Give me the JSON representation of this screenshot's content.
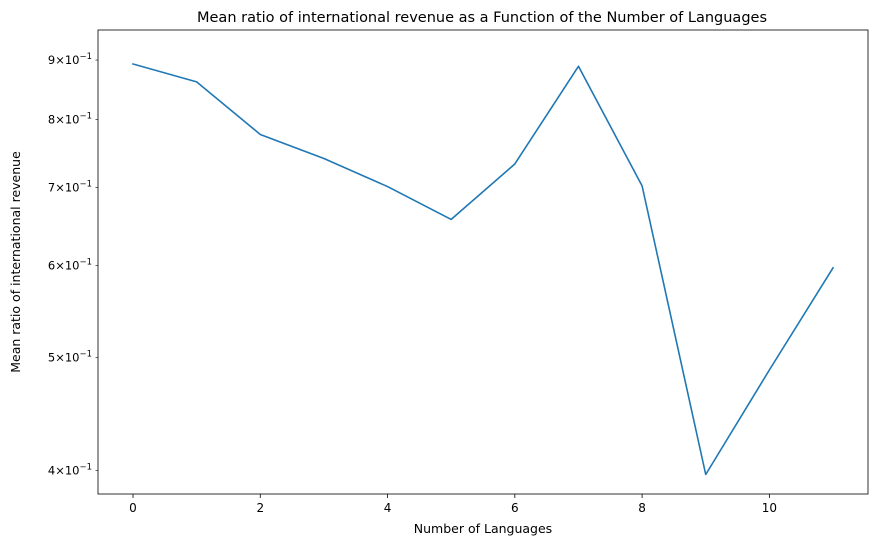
{
  "chart_data": {
    "type": "line",
    "title": "Mean ratio of international revenue as a Function of the Number of Languages",
    "xlabel": "Number of Languages",
    "ylabel": "Mean ratio of international revenue",
    "yscale": "log",
    "xlim": [
      -0.55,
      11.55
    ],
    "ylim": [
      0.382,
      0.955
    ],
    "x_ticks": [
      {
        "value": 0,
        "label": "0"
      },
      {
        "value": 2,
        "label": "2"
      },
      {
        "value": 4,
        "label": "4"
      },
      {
        "value": 6,
        "label": "6"
      },
      {
        "value": 8,
        "label": "8"
      },
      {
        "value": 10,
        "label": "10"
      }
    ],
    "y_ticks": [
      {
        "value": 0.4,
        "mantissa": "4",
        "base": "10",
        "exp": "−1"
      },
      {
        "value": 0.5,
        "mantissa": "5",
        "base": "10",
        "exp": "−1"
      },
      {
        "value": 0.6,
        "mantissa": "6",
        "base": "10",
        "exp": "−1"
      },
      {
        "value": 0.7,
        "mantissa": "7",
        "base": "10",
        "exp": "−1"
      },
      {
        "value": 0.8,
        "mantissa": "8",
        "base": "10",
        "exp": "−1"
      },
      {
        "value": 0.9,
        "mantissa": "9",
        "base": "10",
        "exp": "−1"
      }
    ],
    "grid": false,
    "legend": null,
    "series": [
      {
        "color": "#1f77b4",
        "x": [
          0,
          1,
          2,
          3,
          4,
          5,
          6,
          7,
          8,
          9,
          10,
          11
        ],
        "y": [
          0.893,
          0.862,
          0.777,
          0.741,
          0.701,
          0.657,
          0.733,
          0.889,
          0.702,
          0.397,
          0.488,
          0.597
        ]
      }
    ]
  }
}
